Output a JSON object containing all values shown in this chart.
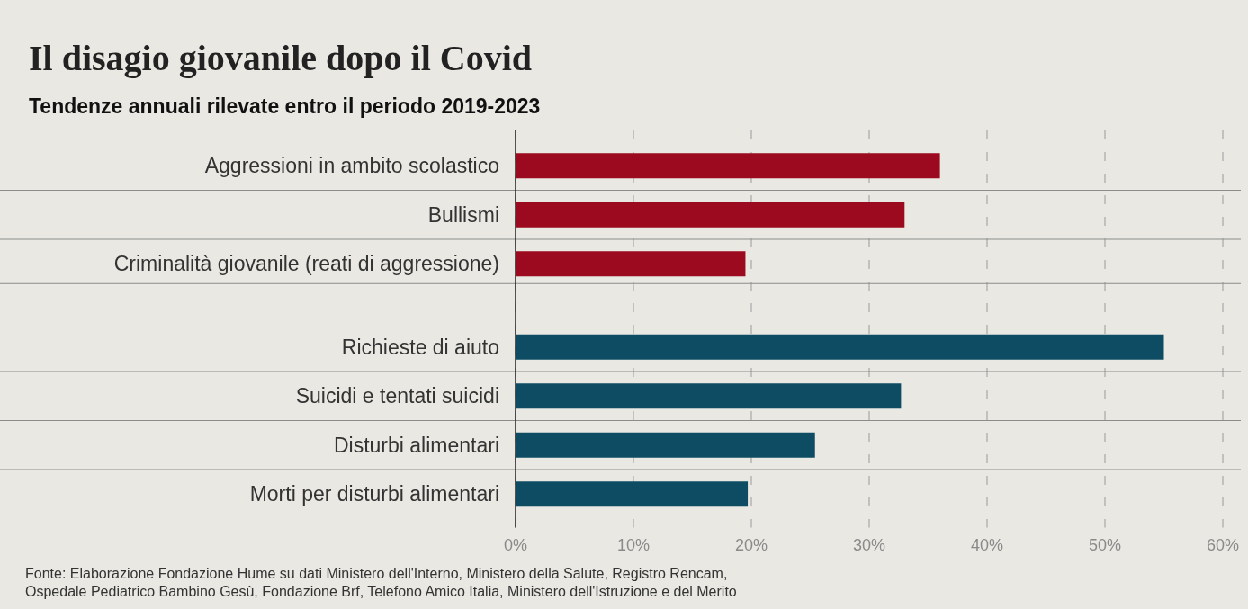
{
  "chart_data": {
    "type": "bar",
    "orientation": "horizontal",
    "title": "Il disagio giovanile dopo il Covid",
    "subtitle": "Tendenze annuali rilevate entro il periodo 2019-2023",
    "categories": [
      "Aggressioni in ambito scolastico",
      "Bullismi",
      "Criminalità giovanile (reati di aggressione)",
      "Richieste di aiuto",
      "Suicidi e tentati suicidi",
      "Disturbi alimentari",
      "Morti per disturbi alimentari"
    ],
    "values": [
      36,
      33,
      19.5,
      55,
      32.7,
      25.4,
      19.7
    ],
    "colors": [
      "#9b0a1e",
      "#9b0a1e",
      "#9b0a1e",
      "#0e4c64",
      "#0e4c64",
      "#0e4c64",
      "#0e4c64"
    ],
    "xlim": [
      0,
      60
    ],
    "xticks": [
      {
        "value": 0,
        "label": "0%"
      },
      {
        "value": 10,
        "label": "10%"
      },
      {
        "value": 20,
        "label": "20%"
      },
      {
        "value": 30,
        "label": "30%"
      },
      {
        "value": 40,
        "label": "40%"
      },
      {
        "value": 50,
        "label": "50%"
      },
      {
        "value": 60,
        "label": "60%"
      }
    ],
    "grid": "x",
    "annotations": [
      "Fonte: Elaborazione Fondazione Hume su dati Ministero dell'Interno, Ministero della Salute, Registro Rencam,",
      "Ospedale Pediatrico Bambino Gesù, Fondazione Brf, Telefono Amico Italia, Ministero dell'Istruzione e del Merito"
    ]
  }
}
